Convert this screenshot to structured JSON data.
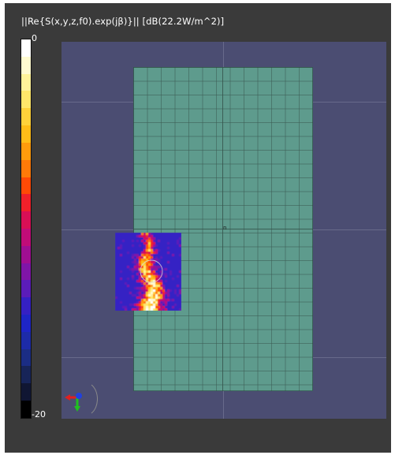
{
  "field": {
    "title": "||Re{S(x,y,z,f0).exp(jβ)}|| [dB(22.2W/m^2)]"
  },
  "colorbar": {
    "max_label": "0",
    "min_label": "-20",
    "colors": [
      "#ffffff",
      "#fffbd0",
      "#fff39a",
      "#ffe76a",
      "#ffd23a",
      "#ffbd18",
      "#ff9c0c",
      "#ff7a08",
      "#ff4a06",
      "#f0202a",
      "#d80f55",
      "#c10c78",
      "#a00e92",
      "#7f15a8",
      "#5b1cb9",
      "#3520c4",
      "#1e25c6",
      "#1d2ba8",
      "#1b2d84",
      "#172458",
      "#101633",
      "#000000"
    ]
  },
  "scene": {
    "origin_label": "n",
    "ground_color": "#4b4d72",
    "plate_color": "#5e9b8d"
  },
  "triad": {
    "x_color": "#e02020",
    "y_color": "#20c020",
    "z_color": "#2040e0"
  }
}
